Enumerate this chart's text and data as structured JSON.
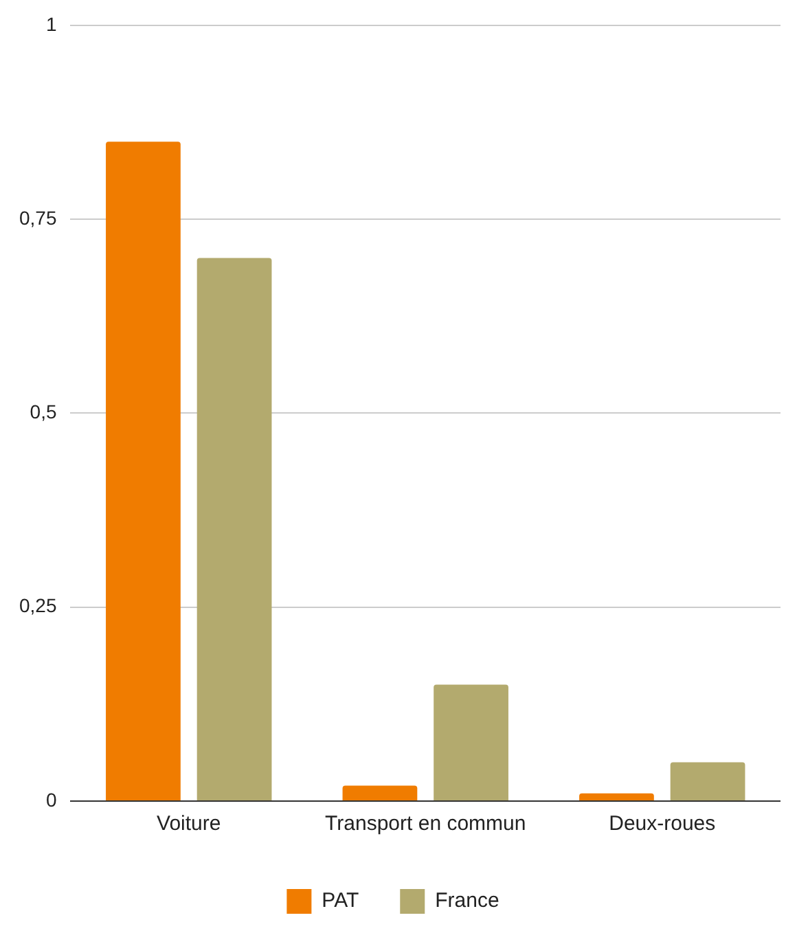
{
  "chart_data": {
    "type": "bar",
    "categories": [
      "Voiture",
      "Transport en commun",
      "Deux-roues"
    ],
    "series": [
      {
        "name": "PAT",
        "color": "#f07c00",
        "values": [
          0.85,
          0.02,
          0.01
        ]
      },
      {
        "name": "France",
        "color": "#b3aa6e",
        "values": [
          0.7,
          0.15,
          0.05
        ]
      }
    ],
    "ylim": [
      0,
      1
    ],
    "yticks": [
      0,
      {
        "value": 0.25,
        "label": "0,25"
      },
      {
        "value": 0.5,
        "label": "0,5"
      },
      {
        "value": 0.75,
        "label": "0,75"
      },
      1
    ],
    "grid": "y",
    "legend": "bottom"
  }
}
